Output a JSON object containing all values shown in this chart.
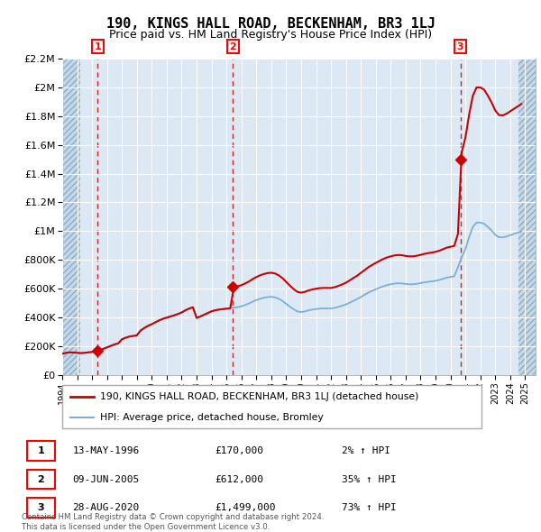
{
  "title": "190, KINGS HALL ROAD, BECKENHAM, BR3 1LJ",
  "subtitle": "Price paid vs. HM Land Registry's House Price Index (HPI)",
  "title_fontsize": 11,
  "subtitle_fontsize": 9,
  "ylim": [
    0,
    2200000
  ],
  "yticks": [
    0,
    200000,
    400000,
    600000,
    800000,
    1000000,
    1200000,
    1400000,
    1600000,
    1800000,
    2000000,
    2200000
  ],
  "ytick_labels": [
    "£0",
    "£200K",
    "£400K",
    "£600K",
    "£800K",
    "£1M",
    "£1.2M",
    "£1.4M",
    "£1.6M",
    "£1.8M",
    "£2M",
    "£2.2M"
  ],
  "xlim_start": 1994.0,
  "xlim_end": 2025.7,
  "plot_bg_color": "#dce9f5",
  "grid_color": "#ffffff",
  "red_line_color": "#cc0000",
  "blue_line_color": "#7bafd4",
  "sale_marker_color": "#cc0000",
  "dashed_line_color": "#cc0000",
  "legend_label_red": "190, KINGS HALL ROAD, BECKENHAM, BR3 1LJ (detached house)",
  "legend_label_blue": "HPI: Average price, detached house, Bromley",
  "footer_text": "Contains HM Land Registry data © Crown copyright and database right 2024.\nThis data is licensed under the Open Government Licence v3.0.",
  "sales": [
    {
      "num": 1,
      "date_year": 1996.37,
      "price": 170000,
      "date_str": "13-MAY-1996",
      "price_str": "£170,000",
      "pct_str": "2% ↑ HPI"
    },
    {
      "num": 2,
      "date_year": 2005.44,
      "price": 612000,
      "date_str": "09-JUN-2005",
      "price_str": "£612,000",
      "pct_str": "35% ↑ HPI"
    },
    {
      "num": 3,
      "date_year": 2020.66,
      "price": 1499000,
      "date_str": "28-AUG-2020",
      "price_str": "£1,499,000",
      "pct_str": "73% ↑ HPI"
    }
  ],
  "hpi_years": [
    1994.0,
    1994.25,
    1994.5,
    1994.75,
    1995.0,
    1995.25,
    1995.5,
    1995.75,
    1996.0,
    1996.25,
    1996.5,
    1996.75,
    1997.0,
    1997.25,
    1997.5,
    1997.75,
    1998.0,
    1998.25,
    1998.5,
    1998.75,
    1999.0,
    1999.25,
    1999.5,
    1999.75,
    2000.0,
    2000.25,
    2000.5,
    2000.75,
    2001.0,
    2001.25,
    2001.5,
    2001.75,
    2002.0,
    2002.25,
    2002.5,
    2002.75,
    2003.0,
    2003.25,
    2003.5,
    2003.75,
    2004.0,
    2004.25,
    2004.5,
    2004.75,
    2005.0,
    2005.25,
    2005.5,
    2005.75,
    2006.0,
    2006.25,
    2006.5,
    2006.75,
    2007.0,
    2007.25,
    2007.5,
    2007.75,
    2008.0,
    2008.25,
    2008.5,
    2008.75,
    2009.0,
    2009.25,
    2009.5,
    2009.75,
    2010.0,
    2010.25,
    2010.5,
    2010.75,
    2011.0,
    2011.25,
    2011.5,
    2011.75,
    2012.0,
    2012.25,
    2012.5,
    2012.75,
    2013.0,
    2013.25,
    2013.5,
    2013.75,
    2014.0,
    2014.25,
    2014.5,
    2014.75,
    2015.0,
    2015.25,
    2015.5,
    2015.75,
    2016.0,
    2016.25,
    2016.5,
    2016.75,
    2017.0,
    2017.25,
    2017.5,
    2017.75,
    2018.0,
    2018.25,
    2018.5,
    2018.75,
    2019.0,
    2019.25,
    2019.5,
    2019.75,
    2020.0,
    2020.25,
    2020.5,
    2020.75,
    2021.0,
    2021.25,
    2021.5,
    2021.75,
    2022.0,
    2022.25,
    2022.5,
    2022.75,
    2023.0,
    2023.25,
    2023.5,
    2023.75,
    2024.0,
    2024.25,
    2024.5,
    2024.75
  ],
  "hpi_values": [
    148000,
    155000,
    158000,
    157000,
    155000,
    153000,
    155000,
    158000,
    161000,
    167000,
    174000,
    182000,
    193000,
    203000,
    213000,
    221000,
    249000,
    260000,
    268000,
    272000,
    277000,
    310000,
    328000,
    343000,
    354000,
    368000,
    381000,
    392000,
    400000,
    408000,
    416000,
    425000,
    436000,
    451000,
    463000,
    472000,
    398000,
    408000,
    420000,
    432000,
    444000,
    451000,
    456000,
    459000,
    462000,
    465000,
    469000,
    472000,
    478000,
    487000,
    497000,
    510000,
    521000,
    530000,
    537000,
    542000,
    544000,
    540000,
    530000,
    515000,
    495000,
    475000,
    457000,
    442000,
    438000,
    442000,
    450000,
    455000,
    459000,
    462000,
    463000,
    463000,
    463000,
    467000,
    474000,
    482000,
    491000,
    503000,
    516000,
    528000,
    543000,
    558000,
    573000,
    585000,
    596000,
    607000,
    617000,
    625000,
    631000,
    636000,
    638000,
    637000,
    633000,
    631000,
    631000,
    634000,
    639000,
    644000,
    648000,
    651000,
    655000,
    661000,
    669000,
    677000,
    682000,
    686000,
    750000,
    820000,
    875000,
    960000,
    1030000,
    1060000,
    1060000,
    1052000,
    1030000,
    1005000,
    975000,
    958000,
    957000,
    963000,
    972000,
    981000,
    990000,
    999000
  ],
  "hatch_left_end": 1995.2,
  "hatch_right_start": 2024.58
}
